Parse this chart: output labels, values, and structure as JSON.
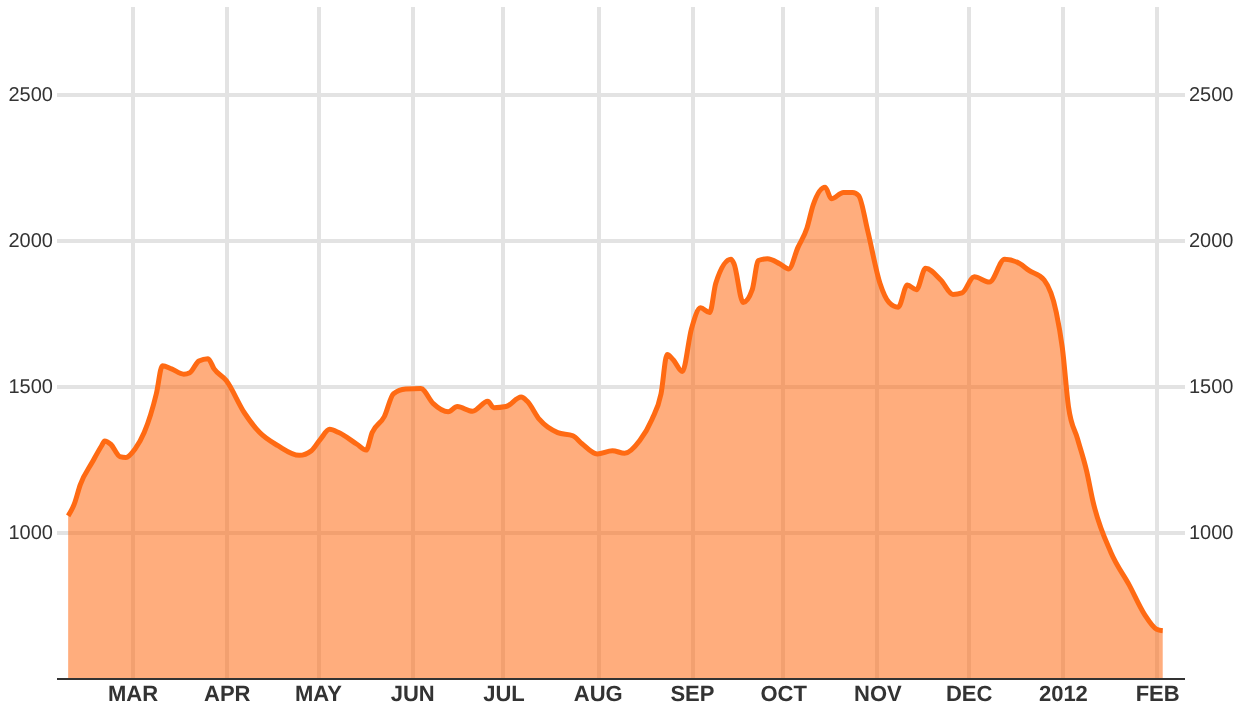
{
  "chart_data": {
    "type": "area",
    "x": [
      "2011-02-08",
      "2011-02-10",
      "2011-02-12",
      "2011-02-16",
      "2011-02-19",
      "2011-02-20",
      "2011-02-22",
      "2011-02-25",
      "2011-02-27",
      "2011-03-02",
      "2011-03-05",
      "2011-03-09",
      "2011-03-11",
      "2011-03-14",
      "2011-03-18",
      "2011-03-20",
      "2011-03-23",
      "2011-03-26",
      "2011-03-28",
      "2011-04-01",
      "2011-04-07",
      "2011-04-12",
      "2011-04-18",
      "2011-04-25",
      "2011-04-29",
      "2011-05-02",
      "2011-05-05",
      "2011-05-08",
      "2011-05-14",
      "2011-05-17",
      "2011-05-19",
      "2011-05-23",
      "2011-05-26",
      "2011-05-30",
      "2011-06-04",
      "2011-06-08",
      "2011-06-13",
      "2011-06-16",
      "2011-06-21",
      "2011-06-26",
      "2011-06-28",
      "2011-07-02",
      "2011-07-07",
      "2011-07-09",
      "2011-07-13",
      "2011-07-19",
      "2011-07-24",
      "2011-07-27",
      "2011-08-01",
      "2011-08-06",
      "2011-08-10",
      "2011-08-15",
      "2011-08-19",
      "2011-08-22",
      "2011-08-24",
      "2011-08-26",
      "2011-08-29",
      "2011-09-01",
      "2011-09-04",
      "2011-09-07",
      "2011-09-09",
      "2011-09-14",
      "2011-09-15",
      "2011-09-18",
      "2011-09-21",
      "2011-09-23",
      "2011-09-26",
      "2011-09-30",
      "2011-10-03",
      "2011-10-06",
      "2011-10-09",
      "2011-10-11",
      "2011-10-15",
      "2011-10-17",
      "2011-10-21",
      "2011-10-24",
      "2011-10-26",
      "2011-10-29",
      "2011-11-02",
      "2011-11-05",
      "2011-11-08",
      "2011-11-11",
      "2011-11-14",
      "2011-11-17",
      "2011-11-22",
      "2011-11-26",
      "2011-11-29",
      "2011-12-03",
      "2011-12-08",
      "2011-12-13",
      "2011-12-18",
      "2011-12-21",
      "2011-12-26",
      "2011-12-30",
      "2012-01-01",
      "2012-01-03",
      "2012-01-06",
      "2012-01-09",
      "2012-01-11",
      "2012-01-17",
      "2012-01-23",
      "2012-01-28",
      "2012-02-01",
      "2012-02-03"
    ],
    "series": [
      {
        "color": "#ff6a13",
        "values": [
          1055,
          1095,
          1162,
          1240,
          1295,
          1311,
          1300,
          1258,
          1255,
          1284,
          1340,
          1473,
          1569,
          1558,
          1540,
          1545,
          1585,
          1593,
          1558,
          1518,
          1407,
          1340,
          1295,
          1262,
          1278,
          1318,
          1351,
          1340,
          1300,
          1280,
          1340,
          1395,
          1473,
          1489,
          1491,
          1440,
          1411,
          1429,
          1413,
          1447,
          1425,
          1429,
          1462,
          1447,
          1385,
          1340,
          1329,
          1302,
          1267,
          1278,
          1269,
          1313,
          1385,
          1473,
          1607,
          1589,
          1549,
          1695,
          1767,
          1751,
          1851,
          1933,
          1918,
          1785,
          1829,
          1929,
          1935,
          1918,
          1900,
          1973,
          2040,
          2118,
          2180,
          2140,
          2162,
          2162,
          2151,
          2029,
          1851,
          1785,
          1769,
          1845,
          1829,
          1902,
          1862,
          1813,
          1818,
          1873,
          1855,
          1933,
          1918,
          1895,
          1862,
          1751,
          1629,
          1429,
          1318,
          1207,
          1107,
          929,
          818,
          718,
          667,
          662
        ]
      }
    ],
    "xlim": [
      "2011-02-04",
      "2012-02-10"
    ],
    "xticks": [
      {
        "value": "2011-03-01",
        "label": "MAR"
      },
      {
        "value": "2011-04-01",
        "label": "APR"
      },
      {
        "value": "2011-05-01",
        "label": "MAY"
      },
      {
        "value": "2011-06-01",
        "label": "JUN"
      },
      {
        "value": "2011-07-01",
        "label": "JUL"
      },
      {
        "value": "2011-08-01",
        "label": "AUG"
      },
      {
        "value": "2011-09-01",
        "label": "SEP"
      },
      {
        "value": "2011-10-01",
        "label": "OCT"
      },
      {
        "value": "2011-11-01",
        "label": "NOV"
      },
      {
        "value": "2011-12-01",
        "label": "DEC"
      },
      {
        "value": "2012-01-01",
        "label": "2012"
      },
      {
        "value": "2012-02-01",
        "label": "FEB"
      }
    ],
    "ylim": [
      500,
      2800
    ],
    "yticks": [
      1000,
      1500,
      2000,
      2500
    ],
    "y2lim": [
      500,
      2800
    ],
    "y2ticks": [
      1000,
      1500,
      2000,
      2500
    ],
    "grid": true,
    "legend": false
  }
}
